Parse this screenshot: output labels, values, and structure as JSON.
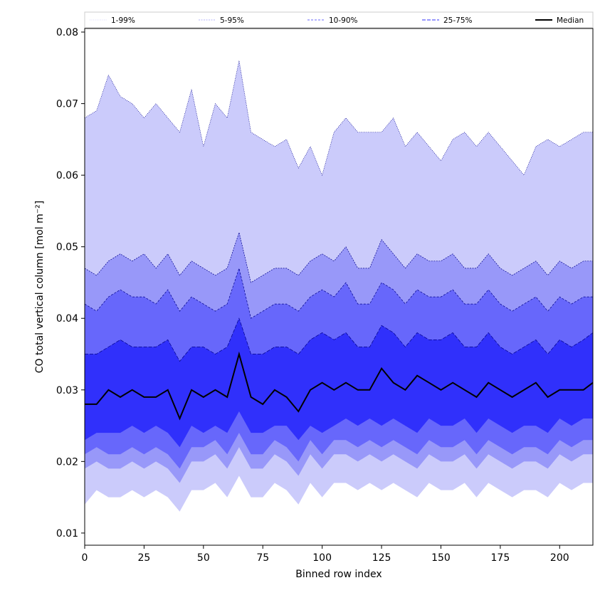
{
  "chart_data": {
    "type": "area",
    "xlabel": "Binned row index",
    "ylabel": "CO total vertical column [mol m⁻²]",
    "xlim": [
      0,
      214
    ],
    "ylim": [
      0.0083,
      0.0805
    ],
    "x_ticks": [
      0,
      25,
      50,
      75,
      100,
      125,
      150,
      175,
      200
    ],
    "y_ticks": [
      0.01,
      0.02,
      0.03,
      0.04,
      0.05,
      0.06,
      0.07,
      0.08
    ],
    "x_tick_labels": [
      "0",
      "25",
      "50",
      "75",
      "100",
      "125",
      "150",
      "175",
      "200"
    ],
    "y_tick_labels": [
      "0.01",
      "0.02",
      "0.03",
      "0.04",
      "0.05",
      "0.06",
      "0.07",
      "0.08"
    ],
    "grid": false,
    "legend_position": "top",
    "legend": [
      "1-99%",
      "5-95%",
      "10-90%",
      "25-75%",
      "Median"
    ],
    "x_anchors": [
      0,
      5,
      10,
      15,
      20,
      25,
      30,
      35,
      40,
      45,
      50,
      55,
      60,
      65,
      70,
      75,
      80,
      85,
      90,
      95,
      100,
      105,
      110,
      115,
      120,
      125,
      130,
      135,
      140,
      145,
      150,
      155,
      160,
      165,
      170,
      175,
      180,
      185,
      190,
      195,
      200,
      205,
      210,
      214
    ],
    "bands": [
      {
        "name": "1-99%",
        "upper": [
          0.068,
          0.069,
          0.074,
          0.071,
          0.07,
          0.068,
          0.07,
          0.068,
          0.066,
          0.072,
          0.064,
          0.07,
          0.068,
          0.076,
          0.066,
          0.065,
          0.064,
          0.065,
          0.061,
          0.064,
          0.06,
          0.066,
          0.068,
          0.066,
          0.066,
          0.066,
          0.068,
          0.064,
          0.066,
          0.064,
          0.062,
          0.065,
          0.066,
          0.064,
          0.066,
          0.064,
          0.062,
          0.06,
          0.064,
          0.065,
          0.064,
          0.065,
          0.066,
          0.066
        ],
        "lower": [
          0.014,
          0.016,
          0.015,
          0.015,
          0.016,
          0.015,
          0.016,
          0.015,
          0.013,
          0.016,
          0.016,
          0.017,
          0.015,
          0.018,
          0.015,
          0.015,
          0.017,
          0.016,
          0.014,
          0.017,
          0.015,
          0.017,
          0.017,
          0.016,
          0.017,
          0.016,
          0.017,
          0.016,
          0.015,
          0.017,
          0.016,
          0.016,
          0.017,
          0.015,
          0.017,
          0.016,
          0.015,
          0.016,
          0.016,
          0.015,
          0.017,
          0.016,
          0.017,
          0.017
        ]
      },
      {
        "name": "5-95%",
        "upper": [
          0.047,
          0.046,
          0.048,
          0.049,
          0.048,
          0.049,
          0.047,
          0.049,
          0.046,
          0.048,
          0.047,
          0.046,
          0.047,
          0.052,
          0.045,
          0.046,
          0.047,
          0.047,
          0.046,
          0.048,
          0.049,
          0.048,
          0.05,
          0.047,
          0.047,
          0.051,
          0.049,
          0.047,
          0.049,
          0.048,
          0.048,
          0.049,
          0.047,
          0.047,
          0.049,
          0.047,
          0.046,
          0.047,
          0.048,
          0.046,
          0.048,
          0.047,
          0.048,
          0.048
        ],
        "lower": [
          0.019,
          0.02,
          0.019,
          0.019,
          0.02,
          0.019,
          0.02,
          0.019,
          0.017,
          0.02,
          0.02,
          0.021,
          0.019,
          0.022,
          0.019,
          0.019,
          0.021,
          0.02,
          0.018,
          0.021,
          0.019,
          0.021,
          0.021,
          0.02,
          0.021,
          0.02,
          0.021,
          0.02,
          0.019,
          0.021,
          0.02,
          0.02,
          0.021,
          0.019,
          0.021,
          0.02,
          0.019,
          0.02,
          0.02,
          0.019,
          0.021,
          0.02,
          0.021,
          0.021
        ]
      },
      {
        "name": "10-90%",
        "upper": [
          0.042,
          0.041,
          0.043,
          0.044,
          0.043,
          0.043,
          0.042,
          0.044,
          0.041,
          0.043,
          0.042,
          0.041,
          0.042,
          0.047,
          0.04,
          0.041,
          0.042,
          0.042,
          0.041,
          0.043,
          0.044,
          0.043,
          0.045,
          0.042,
          0.042,
          0.045,
          0.044,
          0.042,
          0.044,
          0.043,
          0.043,
          0.044,
          0.042,
          0.042,
          0.044,
          0.042,
          0.041,
          0.042,
          0.043,
          0.041,
          0.043,
          0.042,
          0.043,
          0.043
        ],
        "lower": [
          0.021,
          0.022,
          0.021,
          0.021,
          0.022,
          0.021,
          0.022,
          0.021,
          0.019,
          0.022,
          0.022,
          0.023,
          0.021,
          0.024,
          0.021,
          0.021,
          0.023,
          0.022,
          0.02,
          0.023,
          0.021,
          0.023,
          0.023,
          0.022,
          0.023,
          0.022,
          0.023,
          0.022,
          0.021,
          0.023,
          0.022,
          0.022,
          0.023,
          0.021,
          0.023,
          0.022,
          0.021,
          0.022,
          0.022,
          0.021,
          0.023,
          0.022,
          0.023,
          0.023
        ]
      },
      {
        "name": "25-75%",
        "upper": [
          0.035,
          0.035,
          0.036,
          0.037,
          0.036,
          0.036,
          0.036,
          0.037,
          0.034,
          0.036,
          0.036,
          0.035,
          0.036,
          0.04,
          0.035,
          0.035,
          0.036,
          0.036,
          0.035,
          0.037,
          0.038,
          0.037,
          0.038,
          0.036,
          0.036,
          0.039,
          0.038,
          0.036,
          0.038,
          0.037,
          0.037,
          0.038,
          0.036,
          0.036,
          0.038,
          0.036,
          0.035,
          0.036,
          0.037,
          0.035,
          0.037,
          0.036,
          0.037,
          0.038
        ],
        "lower": [
          0.023,
          0.024,
          0.024,
          0.024,
          0.025,
          0.024,
          0.025,
          0.024,
          0.022,
          0.025,
          0.024,
          0.025,
          0.024,
          0.027,
          0.024,
          0.024,
          0.025,
          0.025,
          0.023,
          0.025,
          0.024,
          0.025,
          0.026,
          0.025,
          0.026,
          0.025,
          0.026,
          0.025,
          0.024,
          0.026,
          0.025,
          0.025,
          0.026,
          0.024,
          0.026,
          0.025,
          0.024,
          0.025,
          0.025,
          0.024,
          0.026,
          0.025,
          0.026,
          0.026
        ]
      }
    ],
    "median": [
      0.028,
      0.028,
      0.03,
      0.029,
      0.03,
      0.029,
      0.029,
      0.03,
      0.026,
      0.03,
      0.029,
      0.03,
      0.029,
      0.035,
      0.029,
      0.028,
      0.03,
      0.029,
      0.027,
      0.03,
      0.031,
      0.03,
      0.031,
      0.03,
      0.03,
      0.033,
      0.031,
      0.03,
      0.032,
      0.031,
      0.03,
      0.031,
      0.03,
      0.029,
      0.031,
      0.03,
      0.029,
      0.03,
      0.031,
      0.029,
      0.03,
      0.03,
      0.03,
      0.031
    ],
    "colors": {
      "band_1_99": "#cbcbfb",
      "band_5_95": "#9898f9",
      "band_10_90": "#6767fb",
      "band_25_75": "#3030fb",
      "edge_line": "#00008b",
      "median_line": "#000000"
    }
  }
}
